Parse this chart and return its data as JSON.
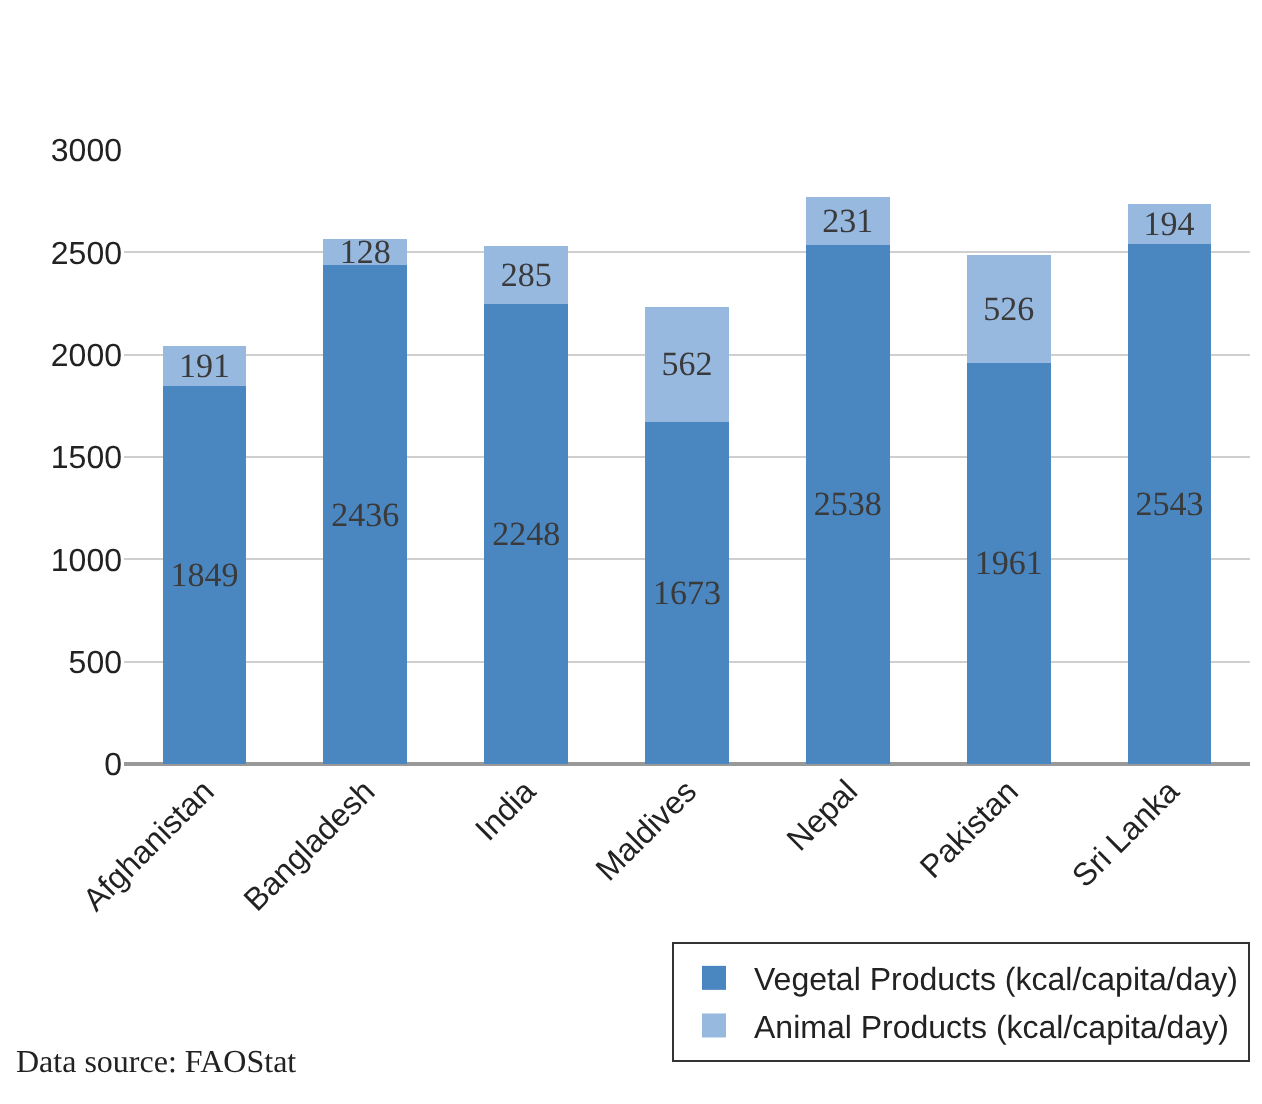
{
  "chart_data": {
    "type": "bar",
    "stacked": true,
    "categories": [
      "Afghanistan",
      "Bangladesh",
      "India",
      "Maldives",
      "Nepal",
      "Pakistan",
      "Sri Lanka"
    ],
    "series": [
      {
        "name": "Vegetal Products (kcal/capita/day)",
        "color": "#4a86c0",
        "values": [
          1849,
          2436,
          2248,
          1673,
          2538,
          1961,
          2543
        ]
      },
      {
        "name": "Animal Products (kcal/capita/day)",
        "color": "#97b9e0",
        "values": [
          191,
          128,
          285,
          562,
          231,
          526,
          194
        ]
      }
    ],
    "data_labels": true,
    "ylim": [
      0,
      3000
    ],
    "yticks": [
      0,
      500,
      1000,
      1500,
      2000,
      2500,
      3000
    ],
    "grid": "y",
    "legend": "bottom right",
    "annotations": [
      "Data source: FAOStat"
    ]
  }
}
